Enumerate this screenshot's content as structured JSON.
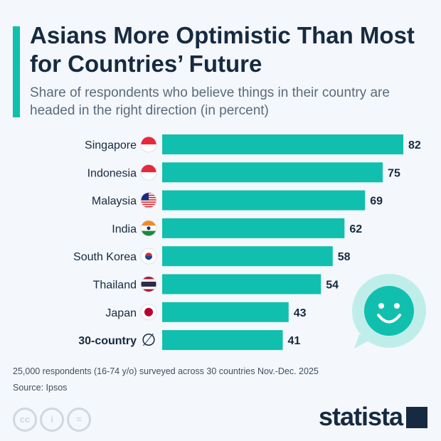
{
  "title": "Asians More Optimistic Than Most for Countries’ Future",
  "subtitle": "Share of respondents who believe things in their country are headed in the right direction (in percent)",
  "note": "25,000 respondents (16-74 y/o) surveyed across 30 countries Nov.-Dec. 2025",
  "source": "Source: Ipsos",
  "brand": "statista",
  "colors": {
    "bar": "#11bfae",
    "text": "#162a40"
  },
  "chart_data": {
    "type": "bar",
    "orientation": "horizontal",
    "categories": [
      "Singapore",
      "Indonesia",
      "Malaysia",
      "India",
      "South Korea",
      "Thailand",
      "Japan",
      "30-country"
    ],
    "category_icons": [
      "flag-singapore",
      "flag-indonesia",
      "flag-malaysia",
      "flag-india",
      "flag-south-korea",
      "flag-thailand",
      "flag-japan",
      "average-symbol"
    ],
    "average_symbol": "∅",
    "values": [
      82,
      75,
      69,
      62,
      58,
      54,
      43,
      41
    ],
    "data_labels": true,
    "grid": false
  }
}
